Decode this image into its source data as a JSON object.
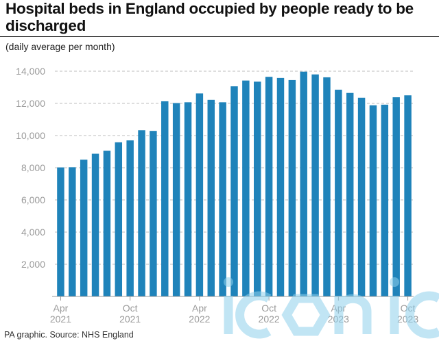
{
  "title": "Hospital beds in England occupied by people ready to be discharged",
  "subtitle": "(daily average per month)",
  "footer": "PA graphic. Source: NHS England",
  "watermark_text": "iconic",
  "colors": {
    "bar": "#1f83ba",
    "grid": "#bdbdbd",
    "axis": "#999999",
    "tick_label": "#9a9a9a",
    "watermark": "#8fd0ec"
  },
  "chart_data": {
    "type": "bar",
    "title": "Hospital beds in England occupied by people ready to be discharged",
    "subtitle": "(daily average per month)",
    "xlabel": "",
    "ylabel": "",
    "ylim": [
      0,
      14000
    ],
    "yticks": [
      2000,
      4000,
      6000,
      8000,
      10000,
      12000,
      14000
    ],
    "ytick_labels": [
      "2,000",
      "4,000",
      "6,000",
      "8,000",
      "10,000",
      "12,000",
      "14,000"
    ],
    "grid": true,
    "categories": [
      "Apr 2021",
      "May 2021",
      "Jun 2021",
      "Jul 2021",
      "Aug 2021",
      "Sep 2021",
      "Oct 2021",
      "Nov 2021",
      "Dec 2021",
      "Jan 2022",
      "Feb 2022",
      "Mar 2022",
      "Apr 2022",
      "May 2022",
      "Jun 2022",
      "Jul 2022",
      "Aug 2022",
      "Sep 2022",
      "Oct 2022",
      "Nov 2022",
      "Dec 2022",
      "Jan 2023",
      "Feb 2023",
      "Mar 2023",
      "Apr 2023",
      "May 2023",
      "Jun 2023",
      "Jul 2023",
      "Aug 2023",
      "Sep 2023",
      "Oct 2023"
    ],
    "values": [
      8020,
      8030,
      8500,
      8870,
      9060,
      9580,
      9700,
      10330,
      10290,
      12130,
      12020,
      12070,
      12620,
      12220,
      12070,
      13060,
      13420,
      13350,
      13650,
      13580,
      13450,
      13970,
      13800,
      13620,
      12850,
      12650,
      12350,
      11880,
      11920,
      12380,
      12500
    ],
    "xtick_labels": [
      {
        "index": 0,
        "month": "Apr",
        "year": "2021"
      },
      {
        "index": 6,
        "month": "Oct",
        "year": "2021"
      },
      {
        "index": 12,
        "month": "Apr",
        "year": "2022"
      },
      {
        "index": 18,
        "month": "Oct",
        "year": "2022"
      },
      {
        "index": 24,
        "month": "Apr",
        "year": "2023"
      },
      {
        "index": 30,
        "month": "Oct",
        "year": "2023"
      }
    ]
  }
}
